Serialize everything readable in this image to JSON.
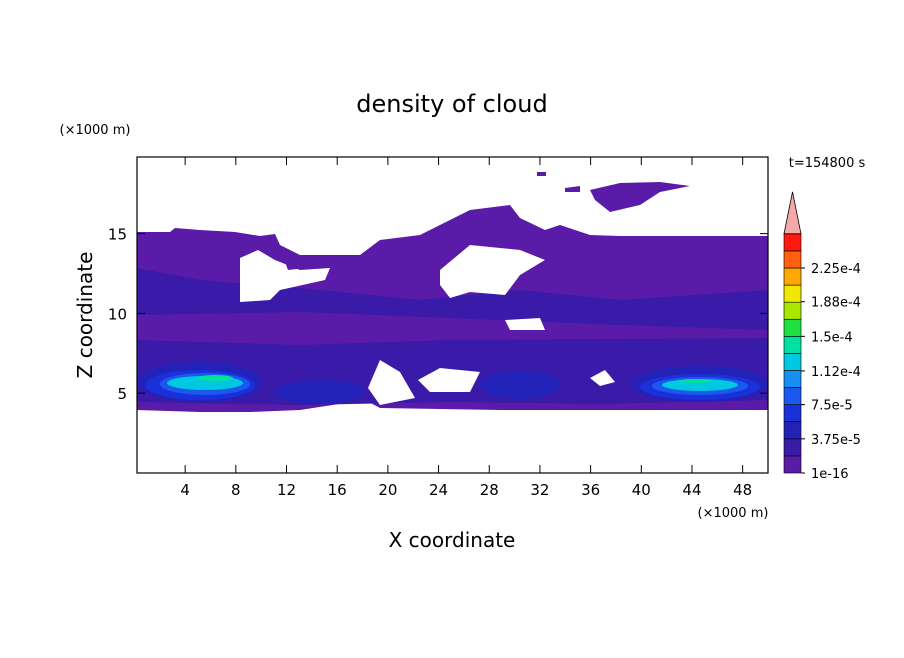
{
  "chart_data": {
    "type": "contour",
    "title": "density of cloud",
    "x_label": "X coordinate",
    "y_label": "Z coordinate",
    "x_unit": "(×1000 m)",
    "y_unit": "(×1000 m)",
    "annotation": "t=154800 s",
    "xlim": [
      0.2,
      50
    ],
    "ylim": [
      0,
      19.8
    ],
    "xticks": [
      4,
      8,
      12,
      16,
      20,
      24,
      28,
      32,
      36,
      40,
      44,
      48
    ],
    "yticks": [
      5,
      10,
      15
    ],
    "colorbar": {
      "ticks": [
        {
          "value": 1e-16,
          "label": "1e-16"
        },
        {
          "value": 3.75e-05,
          "label": "3.75e-5"
        },
        {
          "value": 7.5e-05,
          "label": "7.5e-5"
        },
        {
          "value": 0.000112,
          "label": "1.12e-4"
        },
        {
          "value": 0.00015,
          "label": "1.5e-4"
        },
        {
          "value": 0.000188,
          "label": "1.88e-4"
        },
        {
          "value": 0.000225,
          "label": "2.25e-4"
        }
      ],
      "colors": [
        "#5a1ca8",
        "#3a1aa8",
        "#2222b8",
        "#1a30d8",
        "#1a58ee",
        "#1690f0",
        "#00c8e0",
        "#00e0a0",
        "#20e040",
        "#a8e800",
        "#f0e800",
        "#ffa800",
        "#ff6010",
        "#ff1a10"
      ],
      "extend_color": "#f4a8a8"
    }
  }
}
